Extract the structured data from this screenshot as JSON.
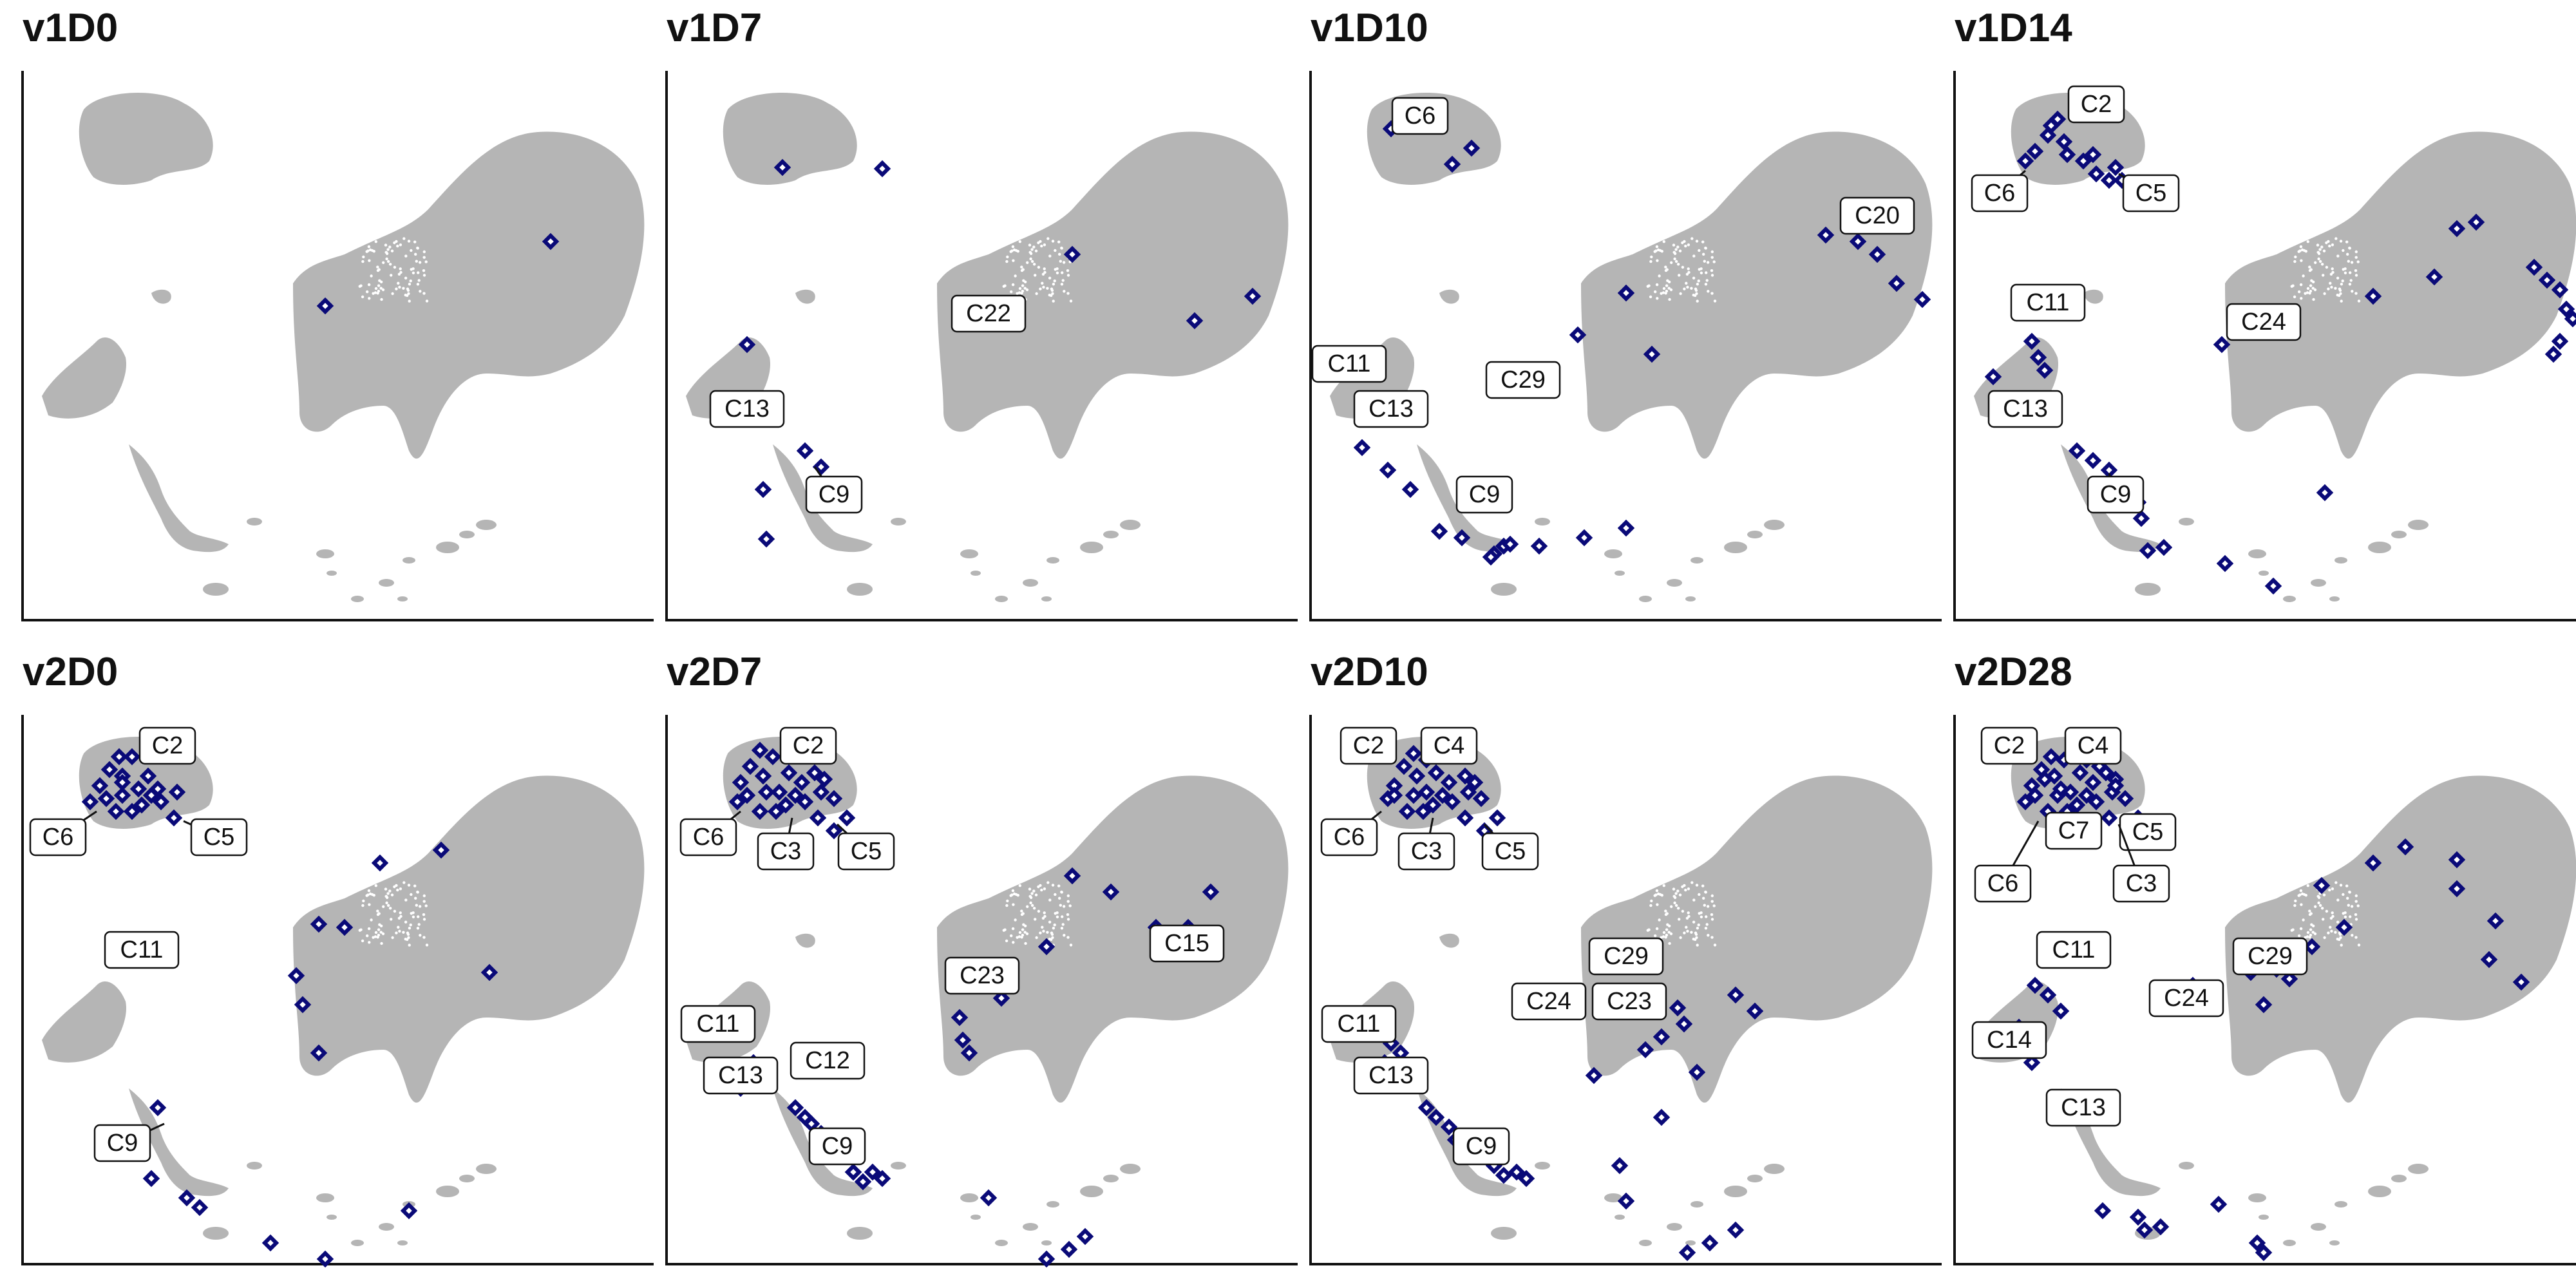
{
  "colors": {
    "background_clusters": "#b5b5b5",
    "point_fill": "#ffffff",
    "point_edge": "#0a0a78",
    "axis": "#111111"
  },
  "chart_data": [
    {
      "type": "scatter",
      "title": "v1D0",
      "labels": []
    },
    {
      "type": "scatter",
      "title": "v1D7",
      "labels": [
        "C22",
        "C13",
        "C9"
      ]
    },
    {
      "type": "scatter",
      "title": "v1D10",
      "labels": [
        "C6",
        "C20",
        "C11",
        "C29",
        "C13",
        "C9"
      ]
    },
    {
      "type": "scatter",
      "title": "v1D14",
      "labels": [
        "C2",
        "C6",
        "C5",
        "C11",
        "C24",
        "C13",
        "C9"
      ]
    },
    {
      "type": "scatter",
      "title": "v2D0",
      "labels": [
        "C2",
        "C6",
        "C5",
        "C11",
        "C9"
      ]
    },
    {
      "type": "scatter",
      "title": "v2D7",
      "labels": [
        "C2",
        "C6",
        "C3",
        "C5",
        "C15",
        "C23",
        "C11",
        "C12",
        "C13",
        "C9"
      ]
    },
    {
      "type": "scatter",
      "title": "v2D10",
      "labels": [
        "C2",
        "C4",
        "C6",
        "C3",
        "C5",
        "C29",
        "C24",
        "C23",
        "C11",
        "C13",
        "C9"
      ]
    },
    {
      "type": "scatter",
      "title": "v2D28",
      "labels": [
        "C2",
        "C4",
        "C7",
        "C5",
        "C6",
        "C3",
        "C11",
        "C29",
        "C24",
        "C14",
        "C13"
      ]
    }
  ]
}
